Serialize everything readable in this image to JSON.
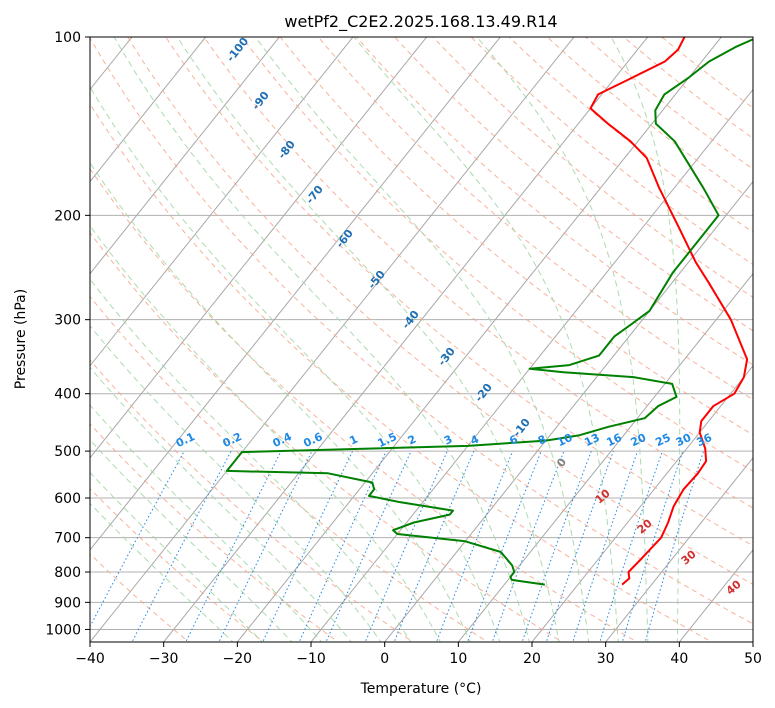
{
  "chart_data": {
    "type": "line",
    "subtype": "skew-t log-p diagram",
    "title": "wetPf2_C2E2.2025.168.13.49.R14",
    "xlabel": "Temperature (°C)",
    "ylabel": "Pressure (hPa)",
    "xlim": [
      -40,
      50
    ],
    "ylim": [
      1050,
      100
    ],
    "y_scale": "log",
    "grid": true,
    "x_ticks": [
      "−40",
      "−30",
      "−20",
      "−10",
      "0",
      "10",
      "20",
      "30",
      "40",
      "50"
    ],
    "y_ticks": [
      "100",
      "200",
      "300",
      "400",
      "500",
      "600",
      "700",
      "800",
      "900",
      "1000"
    ],
    "y_tick_values": [
      100,
      200,
      300,
      400,
      500,
      600,
      700,
      800,
      900,
      1000
    ],
    "colors": {
      "temperature": "#ff0000",
      "dewpoint": "#008000",
      "isotherm": "#a0a0a0",
      "dry_adiabat": "#f7a589",
      "moist_adiabat": "#a5d6a7",
      "mixing_ratio": "#1e88e5",
      "isotherm_label": "#1f6fb4",
      "adiabat_label": "#d32f2f",
      "zero_label": "#808080"
    },
    "isotherm_labels": [
      "-100",
      "-90",
      "-80",
      "-70",
      "-60",
      "-50",
      "-40",
      "-30",
      "-20",
      "-10"
    ],
    "isotherm_label_values": [
      -100,
      -90,
      -80,
      -70,
      -60,
      -50,
      -40,
      -30,
      -20,
      -10
    ],
    "zero_isotherm_label": "0",
    "mixing_ratio_labels": [
      "0.1",
      "0.2",
      "0.4",
      "0.6",
      "1",
      "1.5",
      "2",
      "3",
      "4",
      "6",
      "8",
      "10",
      "13",
      "16",
      "20",
      "25",
      "30",
      "36"
    ],
    "mixing_ratio_values": [
      0.1,
      0.2,
      0.4,
      0.6,
      1,
      1.5,
      2,
      3,
      4,
      6,
      8,
      10,
      13,
      16,
      20,
      25,
      30,
      36
    ],
    "adiabat_labels": [
      "10",
      "20",
      "30",
      "40"
    ],
    "adiabat_label_values": [
      10,
      20,
      30,
      40
    ],
    "series": [
      {
        "key": "temperature",
        "points": [
          [
            840,
            26.0
          ],
          [
            820,
            26.3
          ],
          [
            800,
            25.5
          ],
          [
            760,
            25.8
          ],
          [
            700,
            26.2
          ],
          [
            660,
            25.5
          ],
          [
            620,
            24.5
          ],
          [
            580,
            24.0
          ],
          [
            545,
            24.2
          ],
          [
            520,
            24.0
          ],
          [
            495,
            22.5
          ],
          [
            465,
            20.0
          ],
          [
            445,
            19.0
          ],
          [
            420,
            19.0
          ],
          [
            400,
            20.5
          ],
          [
            375,
            20.0
          ],
          [
            350,
            18.5
          ],
          [
            300,
            12.0
          ],
          [
            260,
            5.0
          ],
          [
            240,
            1.0
          ],
          [
            210,
            -5.0
          ],
          [
            180,
            -12.0
          ],
          [
            160,
            -17.0
          ],
          [
            150,
            -21.0
          ],
          [
            140,
            -26.0
          ],
          [
            132,
            -30.0
          ],
          [
            125,
            -30.5
          ],
          [
            118,
            -28.0
          ],
          [
            110,
            -25.0
          ],
          [
            105,
            -24.5
          ],
          [
            100,
            -25.0
          ]
        ]
      },
      {
        "key": "dewpoint",
        "points": [
          [
            840,
            15.5
          ],
          [
            825,
            10.5
          ],
          [
            815,
            10.0
          ],
          [
            800,
            10.0
          ],
          [
            780,
            9.0
          ],
          [
            740,
            6.0
          ],
          [
            710,
            0.0
          ],
          [
            690,
            -10.0
          ],
          [
            680,
            -11.0
          ],
          [
            660,
            -9.0
          ],
          [
            640,
            -5.0
          ],
          [
            630,
            -5.0
          ],
          [
            610,
            -13.0
          ],
          [
            595,
            -18.0
          ],
          [
            580,
            -18.0
          ],
          [
            565,
            -19.0
          ],
          [
            545,
            -26.0
          ],
          [
            540,
            -40.0
          ],
          [
            502,
            -40.0
          ],
          [
            490,
            -10.0
          ],
          [
            480,
            0.0
          ],
          [
            470,
            4.0
          ],
          [
            455,
            7.0
          ],
          [
            440,
            11.0
          ],
          [
            420,
            11.5
          ],
          [
            405,
            13.0
          ],
          [
            385,
            11.0
          ],
          [
            375,
            5.0
          ],
          [
            368,
            -5.0
          ],
          [
            363,
            -10.0
          ],
          [
            358,
            -5.0
          ],
          [
            345,
            -2.0
          ],
          [
            320,
            -2.0
          ],
          [
            305,
            -1.0
          ],
          [
            290,
            0.0
          ],
          [
            250,
            -1.0
          ],
          [
            220,
            -1.0
          ],
          [
            200,
            -1.0
          ],
          [
            180,
            -6.0
          ],
          [
            150,
            -15.0
          ],
          [
            140,
            -19.5
          ],
          [
            133,
            -21.0
          ],
          [
            125,
            -21.5
          ],
          [
            117,
            -20.0
          ],
          [
            110,
            -19.0
          ],
          [
            104,
            -17.0
          ],
          [
            100,
            -15.0
          ]
        ]
      }
    ]
  }
}
